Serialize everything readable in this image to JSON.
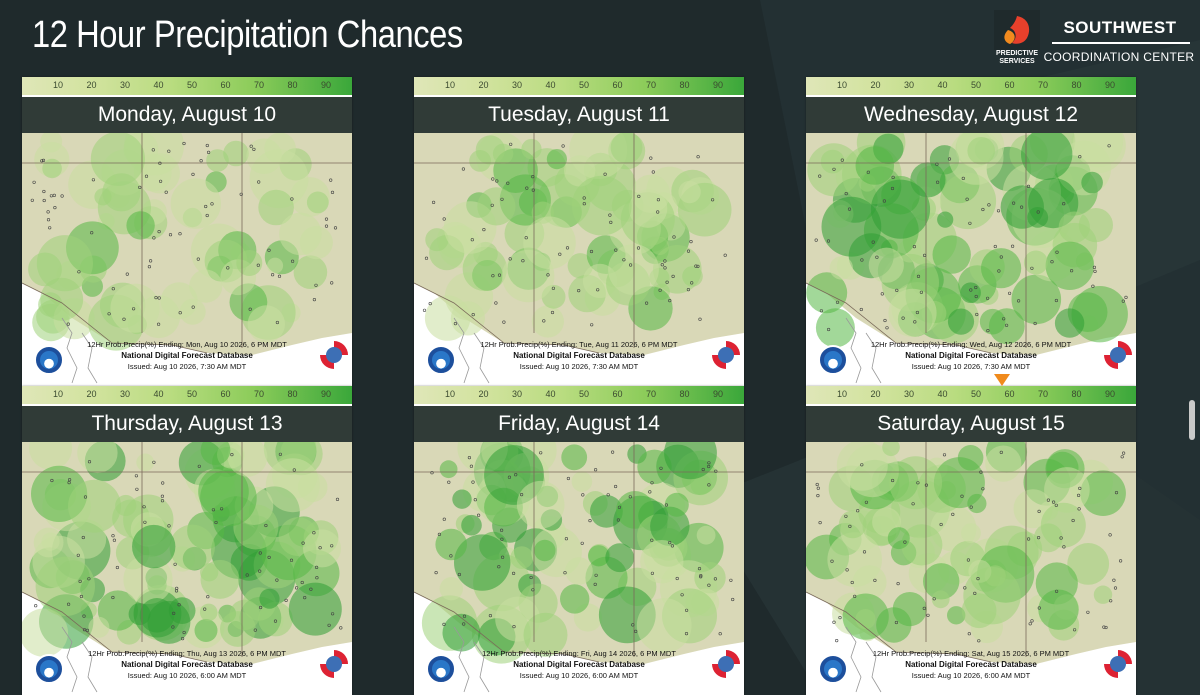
{
  "page": {
    "title": "12 Hour Precipitation Chances",
    "logo_text": "PREDICTIVE SERVICES",
    "org_name": "SOUTHWEST",
    "org_sub": "COORDINATION CENTER"
  },
  "scale_ticks": [
    "10",
    "20",
    "30",
    "40",
    "50",
    "60",
    "70",
    "80",
    "90"
  ],
  "panels": [
    {
      "day": "Monday, August 10",
      "caption": "12Hr Prob.Precip(%) Ending: Mon, Aug 10 2026, 6 PM MDT",
      "db": "National Digital Forecast Database",
      "issued": "Issued: Aug 10 2026, 7:30 AM MDT"
    },
    {
      "day": "Tuesday, August 11",
      "caption": "12Hr Prob.Precip(%) Ending: Tue, Aug 11 2026, 6 PM MDT",
      "db": "National Digital Forecast Database",
      "issued": "Issued: Aug 10 2026, 7:30 AM MDT"
    },
    {
      "day": "Wednesday, August 12",
      "caption": "12Hr Prob.Precip(%) Ending: Wed, Aug 12 2026, 6 PM MDT",
      "db": "National Digital Forecast Database",
      "issued": "Issued: Aug 10 2026, 7:30 AM MDT"
    },
    {
      "day": "Thursday, August 13",
      "caption": "12Hr Prob.Precip(%) Ending: Thu, Aug 13 2026, 6 PM MDT",
      "db": "National Digital Forecast Database",
      "issued": "Issued: Aug 10 2026, 6:00 AM MDT"
    },
    {
      "day": "Friday, August 14",
      "caption": "12Hr Prob.Precip(%) Ending: Fri, Aug 14 2026, 6 PM MDT",
      "db": "National Digital Forecast Database",
      "issued": "Issued: Aug 10 2026, 6:00 AM MDT"
    },
    {
      "day": "Saturday, August 15",
      "caption": "12Hr Prob.Precip(%) Ending: Sat, Aug 15 2026, 6 PM MDT",
      "db": "National Digital Forecast Database",
      "issued": "Issued: Aug 10 2026, 6:00 AM MDT"
    }
  ],
  "colors": {
    "background": "#1f2a2c",
    "banner": "#1c2826",
    "accent": "#f08a1c"
  }
}
